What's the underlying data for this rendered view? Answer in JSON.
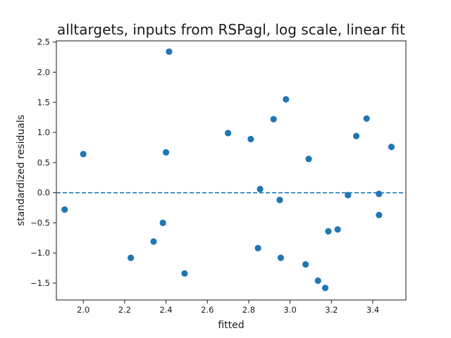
{
  "chart_data": {
    "type": "scatter",
    "title": "alltargets, inputs from RSPagl, log scale, linear fit",
    "xlabel": "fitted",
    "ylabel": "standardized residuals",
    "xlim": [
      1.87,
      3.56
    ],
    "ylim": [
      -1.78,
      2.52
    ],
    "xticks": [
      2.0,
      2.2,
      2.4,
      2.6,
      2.8,
      3.0,
      3.2,
      3.4
    ],
    "xtick_labels": [
      "2.0",
      "2.2",
      "2.4",
      "2.6",
      "2.8",
      "3.0",
      "3.2",
      "3.4"
    ],
    "yticks": [
      -1.5,
      -1.0,
      -0.5,
      0.0,
      0.5,
      1.0,
      1.5,
      2.0,
      2.5
    ],
    "ytick_labels": [
      "−1.5",
      "−1.0",
      "−0.5",
      "0.0",
      "0.5",
      "1.0",
      "1.5",
      "2.0",
      "2.5"
    ],
    "grid": false,
    "reference_line": {
      "y": 0.0,
      "style": "dashed",
      "color": "#1f77b4"
    },
    "marker_color": "#1f77b4",
    "points": [
      {
        "x": 1.91,
        "y": -0.28
      },
      {
        "x": 2.0,
        "y": 0.64
      },
      {
        "x": 2.23,
        "y": -1.08
      },
      {
        "x": 2.34,
        "y": -0.81
      },
      {
        "x": 2.385,
        "y": -0.5
      },
      {
        "x": 2.4,
        "y": 0.67
      },
      {
        "x": 2.415,
        "y": 2.34
      },
      {
        "x": 2.49,
        "y": -1.34
      },
      {
        "x": 2.7,
        "y": 0.99
      },
      {
        "x": 2.81,
        "y": 0.89
      },
      {
        "x": 2.845,
        "y": -0.92
      },
      {
        "x": 2.855,
        "y": 0.06
      },
      {
        "x": 2.92,
        "y": 1.22
      },
      {
        "x": 2.95,
        "y": -0.12
      },
      {
        "x": 2.955,
        "y": -1.08
      },
      {
        "x": 2.98,
        "y": 1.55
      },
      {
        "x": 3.075,
        "y": -1.19
      },
      {
        "x": 3.09,
        "y": 0.56
      },
      {
        "x": 3.135,
        "y": -1.46
      },
      {
        "x": 3.17,
        "y": -1.58
      },
      {
        "x": 3.185,
        "y": -0.64
      },
      {
        "x": 3.23,
        "y": -0.61
      },
      {
        "x": 3.28,
        "y": -0.04
      },
      {
        "x": 3.32,
        "y": 0.94
      },
      {
        "x": 3.37,
        "y": 1.23
      },
      {
        "x": 3.43,
        "y": -0.02
      },
      {
        "x": 3.43,
        "y": -0.37
      },
      {
        "x": 3.49,
        "y": 0.76
      }
    ]
  }
}
